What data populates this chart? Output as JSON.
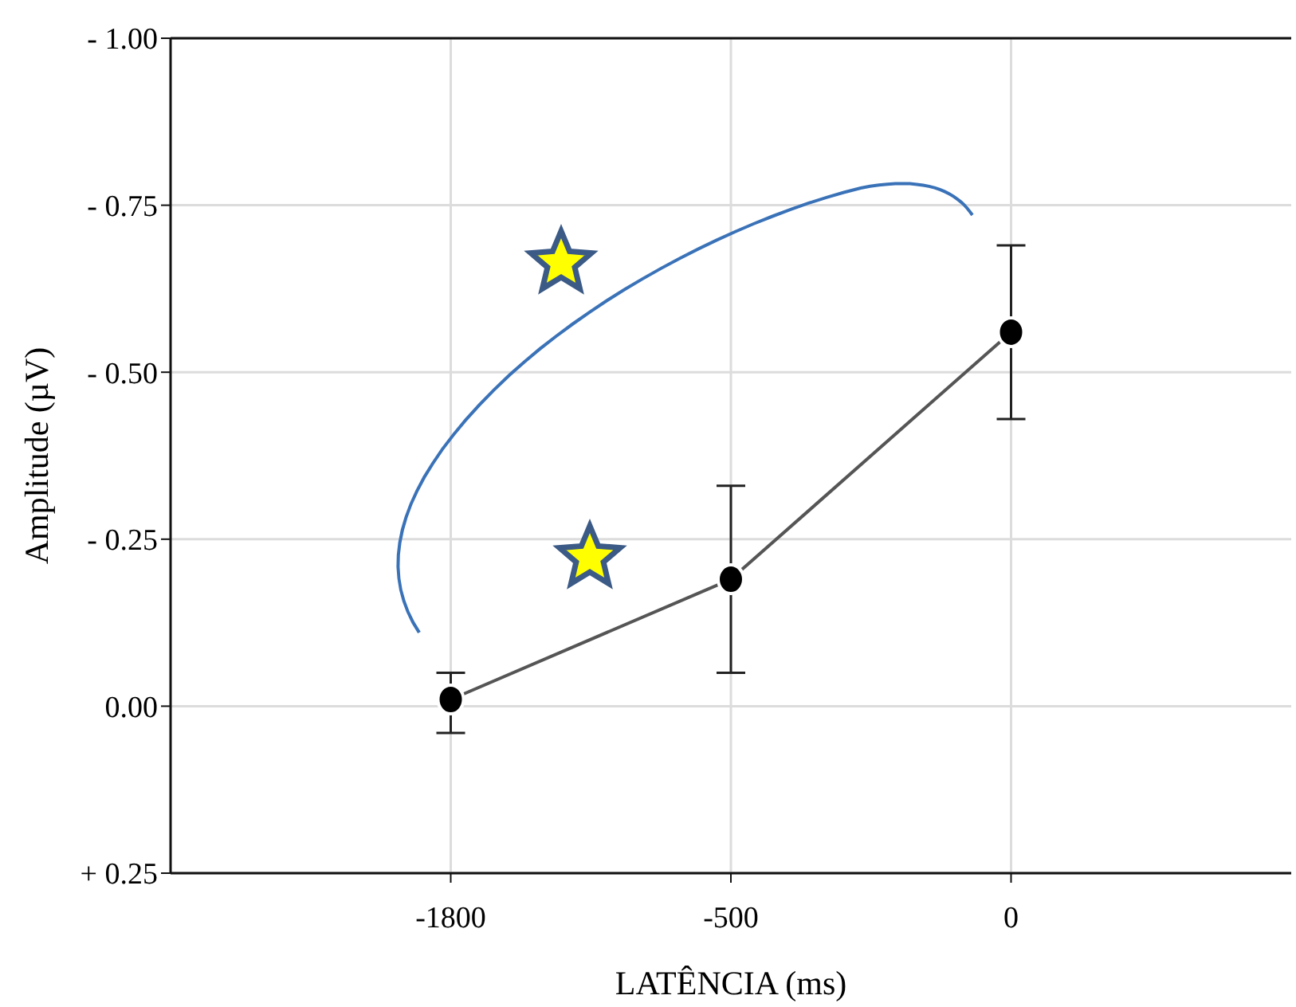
{
  "chart_data": {
    "type": "line",
    "xlabel": "LATÊNCIA (ms)",
    "ylabel": "Amplitude (µV)",
    "categories": [
      "-1800",
      "-500",
      "0"
    ],
    "series": [
      {
        "color": "#555555",
        "values": [
          -0.01,
          -0.19,
          -0.56
        ],
        "errors": [
          [
            -0.05,
            0.04
          ],
          [
            -0.33,
            -0.05
          ],
          [
            -0.69,
            -0.43
          ]
        ]
      }
    ],
    "ylim": [
      0.25,
      -1.0
    ],
    "yticks": [
      {
        "value": -1.0,
        "label": "- 1.00"
      },
      {
        "value": -0.75,
        "label": "- 0.75"
      },
      {
        "value": -0.5,
        "label": "- 0.50"
      },
      {
        "value": -0.25,
        "label": "- 0.25"
      },
      {
        "value": 0,
        "label": "0.00"
      },
      {
        "value": 0.25,
        "label": "+ 0.25"
      }
    ],
    "grid": true,
    "marker": "circle",
    "line_style": "solid"
  }
}
